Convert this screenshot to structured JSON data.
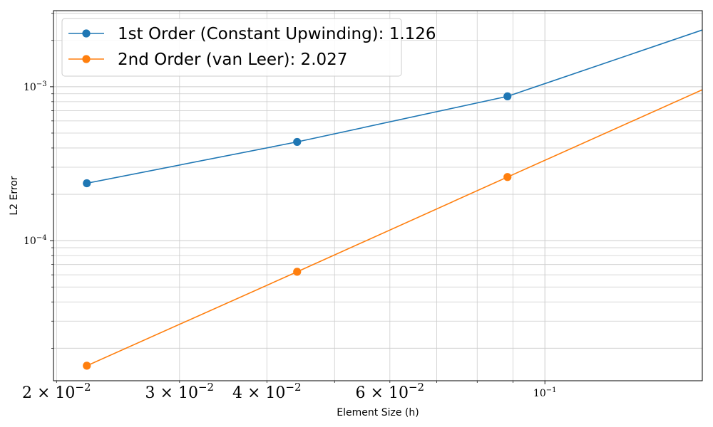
{
  "chart_data": {
    "type": "line",
    "title": "",
    "xlabel": "Element Size (h)",
    "ylabel": "L2 Error",
    "xscale": "log",
    "yscale": "log",
    "xlim": [
      0.0198,
      0.168
    ],
    "ylim": [
      1.23e-05,
      0.00312
    ],
    "grid": "both (major and minor)",
    "legend_position": "top-left",
    "x_ticks": [
      {
        "value": 0.02,
        "mantissa": "2",
        "exp": "−2"
      },
      {
        "value": 0.03,
        "mantissa": "3",
        "exp": "−2"
      },
      {
        "value": 0.04,
        "mantissa": "4",
        "exp": "−2"
      },
      {
        "value": 0.06,
        "mantissa": "6",
        "exp": "−2"
      },
      {
        "value": 0.1,
        "mantissa": "",
        "exp": "−1"
      }
    ],
    "y_ticks": [
      {
        "value": 0.001,
        "exp": "−3"
      },
      {
        "value": 0.0001,
        "exp": "−4"
      }
    ],
    "series": [
      {
        "name": "1st Order (Constant Upwinding): 1.126",
        "color": "#1f77b4",
        "x": [
          0.0221,
          0.0442,
          0.0884,
          0.1768
        ],
        "y": [
          0.000236,
          0.000438,
          0.000866,
          0.00253
        ]
      },
      {
        "name": "2nd Order (van Leer): 2.027",
        "color": "#ff7f0e",
        "x": [
          0.0221,
          0.0442,
          0.0884,
          0.1768
        ],
        "y": [
          1.54e-05,
          6.28e-05,
          0.000259,
          0.00106
        ]
      }
    ]
  }
}
